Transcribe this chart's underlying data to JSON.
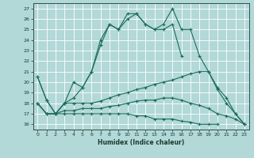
{
  "xlabel": "Humidex (Indice chaleur)",
  "bg_color": "#b2d8d8",
  "grid_color": "#ffffff",
  "line_color": "#1a6b5a",
  "xlim": [
    -0.5,
    23.5
  ],
  "ylim": [
    15.5,
    27.5
  ],
  "yticks": [
    16,
    17,
    18,
    19,
    20,
    21,
    22,
    23,
    24,
    25,
    26,
    27
  ],
  "xticks": [
    0,
    1,
    2,
    3,
    4,
    5,
    6,
    7,
    8,
    9,
    10,
    11,
    12,
    13,
    14,
    15,
    16,
    17,
    18,
    19,
    20,
    21,
    22,
    23
  ],
  "lines": [
    [
      20.5,
      18.3,
      17.0,
      18.0,
      18.5,
      19.5,
      21.0,
      23.5,
      25.5,
      25.0,
      26.5,
      26.5,
      25.5,
      25.0,
      25.5,
      27.0,
      25.0,
      25.0,
      22.5,
      21.0,
      19.5,
      18.5,
      17.0,
      16.0
    ],
    [
      20.5,
      18.3,
      17.0,
      18.0,
      20.0,
      19.5,
      21.0,
      24.0,
      25.5,
      25.0,
      26.0,
      26.5,
      25.5,
      25.0,
      25.0,
      25.5,
      22.5,
      null,
      null,
      null,
      null,
      null,
      null,
      null
    ],
    [
      18.0,
      17.0,
      17.0,
      18.0,
      18.0,
      18.0,
      18.0,
      18.2,
      18.5,
      18.8,
      19.0,
      19.3,
      19.5,
      19.8,
      20.0,
      20.2,
      20.5,
      20.8,
      21.0,
      21.0,
      19.3,
      18.0,
      17.0,
      16.0
    ],
    [
      18.0,
      17.0,
      17.0,
      17.3,
      17.3,
      17.5,
      17.5,
      17.5,
      17.7,
      17.8,
      18.0,
      18.2,
      18.3,
      18.3,
      18.5,
      18.5,
      18.3,
      18.0,
      17.8,
      17.5,
      17.0,
      16.8,
      16.5,
      16.0
    ],
    [
      18.0,
      17.0,
      17.0,
      17.0,
      17.0,
      17.0,
      17.0,
      17.0,
      17.0,
      17.0,
      17.0,
      16.8,
      16.8,
      16.5,
      16.5,
      16.5,
      16.3,
      16.2,
      16.0,
      16.0,
      16.0,
      null,
      null,
      null
    ]
  ]
}
